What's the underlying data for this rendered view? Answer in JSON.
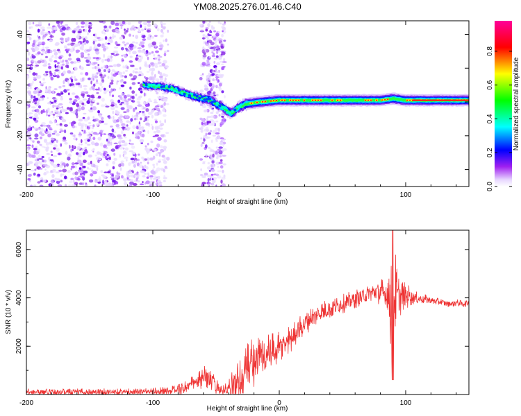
{
  "title": "YM08.2025.276.01.46.C40",
  "chart_data": [
    {
      "type": "heatmap",
      "title": "",
      "xlabel": "Height of straight line (km)",
      "ylabel": "Frequency (Hz)",
      "xlim": [
        -200,
        150
      ],
      "ylim": [
        -50,
        48
      ],
      "xticks": [
        -200,
        -100,
        0,
        100
      ],
      "xtick_labels": [
        "-200",
        "-100",
        "0",
        "100"
      ],
      "yticks": [
        -40,
        -20,
        0,
        20,
        40
      ],
      "ytick_labels": [
        "-40",
        "-20",
        "0",
        "20",
        "40"
      ],
      "colorbar": {
        "label": "Normalized spectral amplitude",
        "range": [
          0,
          0.98
        ],
        "ticks": [
          0,
          0.2,
          0.4,
          0.6,
          0.8
        ],
        "tick_labels": [
          "0.0",
          "0.2",
          "0.4",
          "0.6",
          "0.8"
        ],
        "colors": [
          "#ffffff",
          "#a020f0",
          "#0000ff",
          "#00ffff",
          "#00ff00",
          "#ffff00",
          "#ff0000",
          "#ff0099"
        ]
      },
      "noise_regions_km": [
        [
          -200,
          -88
        ],
        [
          -62,
          -43
        ]
      ],
      "signal_ridge": {
        "height_km": [
          -108,
          -95,
          -85,
          -75,
          -65,
          -55,
          -45,
          -38,
          -32,
          -25,
          -15,
          0,
          20,
          40,
          60,
          80,
          90,
          100,
          120,
          150
        ],
        "frequency_hz": [
          10,
          9,
          8,
          5,
          3,
          1,
          -3,
          -7,
          -3,
          -1,
          0,
          1,
          1,
          1,
          1,
          1,
          2,
          1,
          1,
          1
        ]
      }
    },
    {
      "type": "line",
      "title": "",
      "xlabel": "Height of straight line (km)",
      "ylabel": "SNR (10 * v/v)",
      "xlim": [
        -200,
        150
      ],
      "ylim": [
        0,
        6800
      ],
      "xticks": [
        -200,
        -100,
        0,
        100
      ],
      "xtick_labels": [
        "-200",
        "-100",
        "0",
        "100"
      ],
      "yticks": [
        2000,
        4000,
        6000
      ],
      "ytick_labels": [
        "2000",
        "4000",
        "6000"
      ],
      "line_color": "#ee3333",
      "series": [
        {
          "name": "SNR",
          "x": [
            -200,
            -180,
            -160,
            -140,
            -120,
            -100,
            -85,
            -75,
            -65,
            -58,
            -52,
            -45,
            -40,
            -35,
            -30,
            -25,
            -20,
            -15,
            -10,
            -5,
            0,
            5,
            10,
            15,
            20,
            25,
            30,
            35,
            40,
            45,
            50,
            55,
            60,
            65,
            70,
            75,
            80,
            85,
            88,
            90,
            92,
            95,
            100,
            105,
            110,
            115,
            120,
            125,
            130,
            135,
            140,
            145,
            150
          ],
          "y": [
            120,
            110,
            100,
            100,
            110,
            120,
            160,
            280,
            500,
            750,
            450,
            150,
            200,
            400,
            800,
            1100,
            1350,
            1500,
            1600,
            1750,
            1900,
            2150,
            2400,
            2700,
            2950,
            3150,
            3300,
            3450,
            3550,
            3650,
            3750,
            3850,
            3950,
            4050,
            4150,
            4250,
            4200,
            4150,
            3800,
            4500,
            3900,
            4000,
            4100,
            4050,
            3950,
            3950,
            3900,
            3850,
            3800,
            3750,
            3800,
            3750,
            3800
          ],
          "noise_amplitude": [
            150,
            150,
            150,
            150,
            150,
            150,
            200,
            300,
            400,
            500,
            400,
            200,
            400,
            900,
            1200,
            1200,
            1100,
            1000,
            900,
            800,
            700,
            650,
            600,
            550,
            500,
            500,
            450,
            450,
            450,
            400,
            400,
            400,
            400,
            400,
            350,
            400,
            600,
            800,
            2000,
            4000,
            2000,
            800,
            600,
            350,
            250,
            200,
            180,
            170,
            150,
            150,
            150,
            150,
            150
          ]
        }
      ]
    }
  ]
}
